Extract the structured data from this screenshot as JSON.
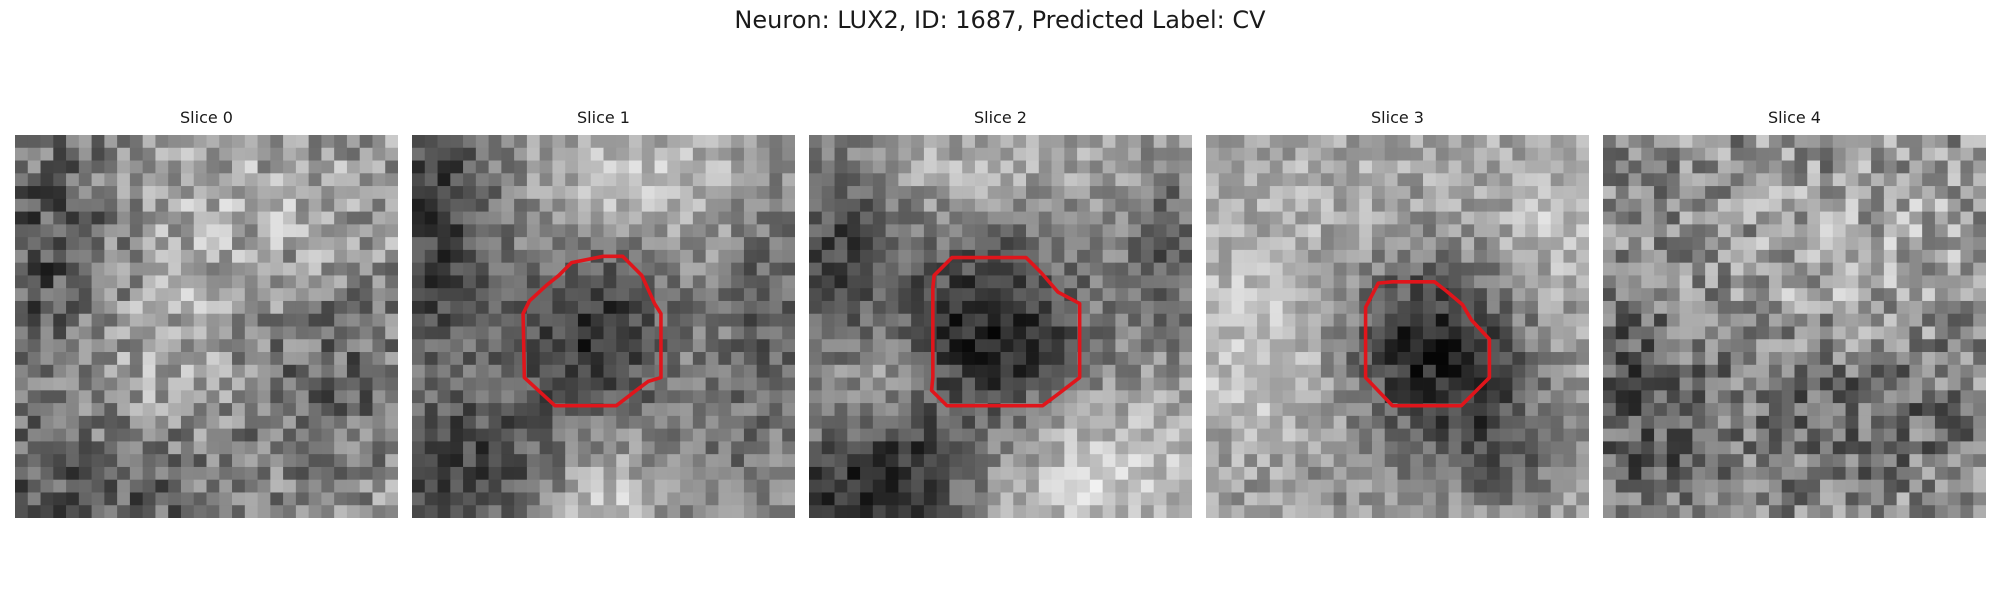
{
  "figure": {
    "title": "Neuron: LUX2, ID: 1687, Predicted Label: CV"
  },
  "colors": {
    "background": "#ffffff",
    "roi_outline": "#e0151b"
  },
  "panels": [
    {
      "title": "Slice 0",
      "has_roi": false,
      "dark_regions": [
        "upper-left",
        "lower-left",
        "lower-right"
      ]
    },
    {
      "title": "Slice 1",
      "has_roi": true,
      "dark_regions": [
        "center blob inside outline",
        "upper-left",
        "lower-left",
        "right"
      ]
    },
    {
      "title": "Slice 2",
      "has_roi": true,
      "dark_regions": [
        "center blob inside outline",
        "left",
        "lower-left"
      ]
    },
    {
      "title": "Slice 3",
      "has_roi": true,
      "dark_regions": [
        "center blob inside outline",
        "lower-right"
      ]
    },
    {
      "title": "Slice 4",
      "has_roi": false,
      "dark_regions": [
        "left",
        "lower-right"
      ]
    }
  ]
}
